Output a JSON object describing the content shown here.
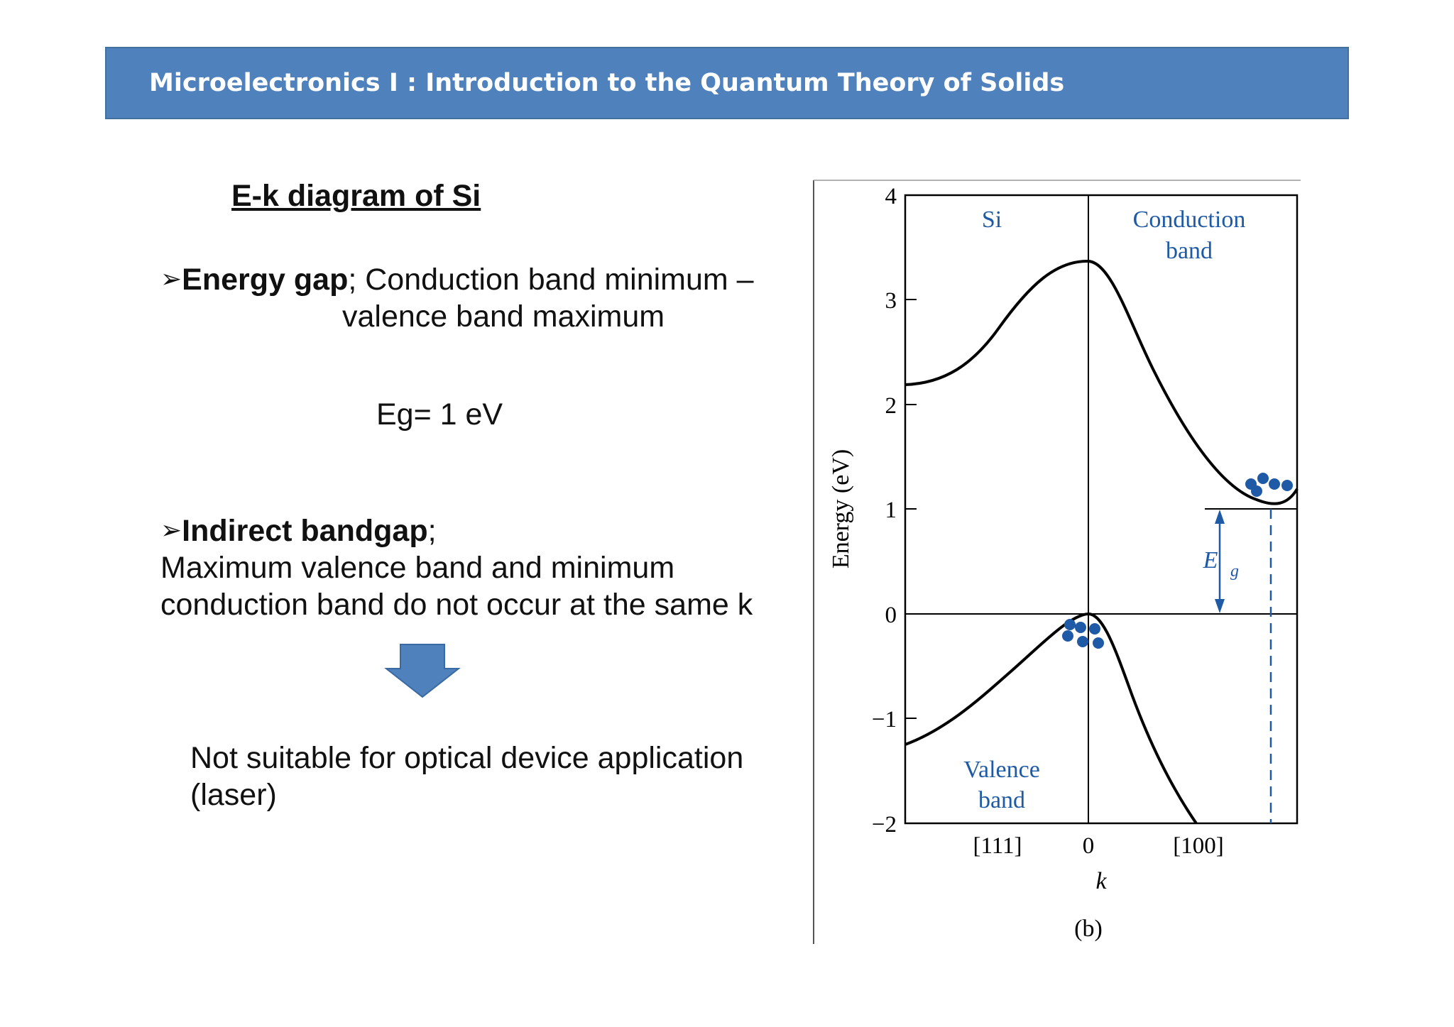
{
  "header": {
    "title": "Microelectronics I : Introduction to the Quantum Theory of Solids"
  },
  "left": {
    "section_title": "E-k diagram of Si",
    "energy_gap": {
      "term": "Energy gap",
      "desc_1": "; Conduction band minimum –",
      "desc_2": "valence band maximum"
    },
    "eg_value": "Eg= 1 eV",
    "indirect": {
      "term": "Indirect bandgap",
      "suffix": ";",
      "desc_1": "Maximum valence band and minimum",
      "desc_2": "conduction band do not occur at the same k"
    },
    "conclusion_1": "Not suitable for optical device application",
    "conclusion_2": "(laser)"
  },
  "figure": {
    "y_axis_label": "Energy (eV)",
    "y_ticks": [
      "4",
      "3",
      "2",
      "1",
      "0",
      "−1",
      "−2"
    ],
    "x_ticks": [
      "[111]",
      "0",
      "[100]"
    ],
    "x_axis_label": "k",
    "caption": "(b)",
    "material_label": "Si",
    "conduction_label_1": "Conduction",
    "conduction_label_2": "band",
    "valence_label_1": "Valence",
    "valence_label_2": "band",
    "gap_label": "E",
    "gap_subscript": "g",
    "colors": {
      "annotation": "#1f5aa6",
      "curve": "#000000",
      "accent": "#4f81bd"
    }
  }
}
